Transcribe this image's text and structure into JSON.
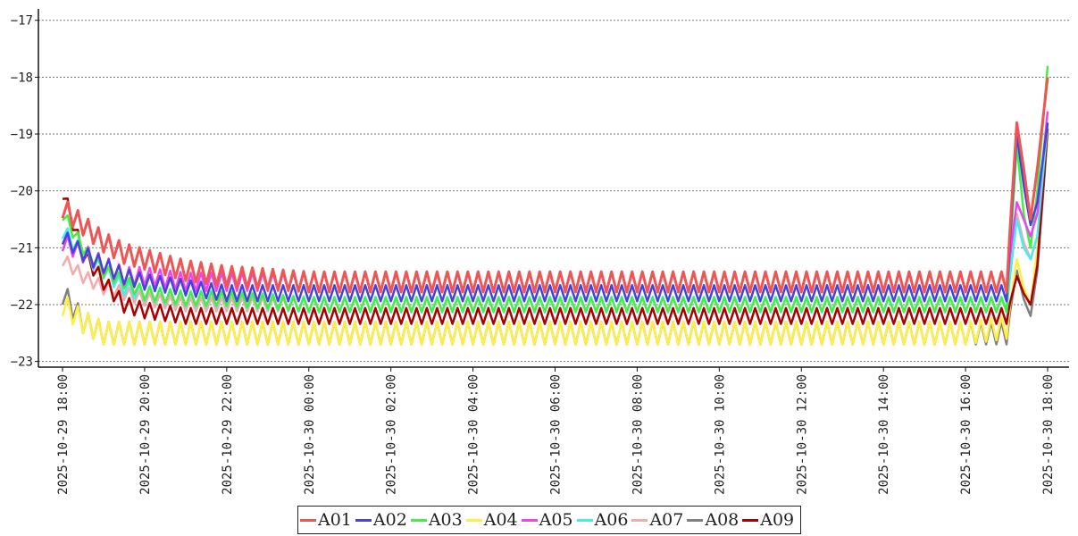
{
  "chart_data": {
    "type": "line",
    "title": "",
    "xlabel": "",
    "ylabel": "",
    "ylim": [
      -23.1,
      -16.8
    ],
    "yticks": [
      -17,
      -18,
      -19,
      -20,
      -21,
      -22,
      -23
    ],
    "x_range": [
      "2025-10-29 17:50",
      "2025-10-30 18:15"
    ],
    "xtick_labels": [
      "2025-10-29 18:00",
      "2025-10-29 20:00",
      "2025-10-29 22:00",
      "2025-10-30 00:00",
      "2025-10-30 02:00",
      "2025-10-30 04:00",
      "2025-10-30 06:00",
      "2025-10-30 08:00",
      "2025-10-30 10:00",
      "2025-10-30 12:00",
      "2025-10-30 14:00",
      "2025-10-30 16:00",
      "2025-10-30 18:00"
    ],
    "grid": "horizontal dotted",
    "legend_position": "bottom-center",
    "x": [
      "2025-10-29 18:00",
      "2025-10-29 18:30",
      "2025-10-29 19:00",
      "2025-10-29 19:30",
      "2025-10-29 20:00",
      "2025-10-29 21:00",
      "2025-10-29 22:00",
      "2025-10-30 00:00",
      "2025-10-30 02:00",
      "2025-10-30 04:00",
      "2025-10-30 06:00",
      "2025-10-30 08:00",
      "2025-10-30 10:00",
      "2025-10-30 12:00",
      "2025-10-30 14:00",
      "2025-10-30 16:00",
      "2025-10-30 17:00",
      "2025-10-30 17:15",
      "2025-10-30 17:25",
      "2025-10-30 17:35",
      "2025-10-30 17:45",
      "2025-10-30 18:00"
    ],
    "series": [
      {
        "name": "A01",
        "color": "#ee5555",
        "values": [
          -20.3,
          -20.6,
          -20.9,
          -21.1,
          -21.2,
          -21.4,
          -21.5,
          -21.6,
          -21.6,
          -21.6,
          -21.6,
          -21.6,
          -21.6,
          -21.6,
          -21.6,
          -21.6,
          -21.6,
          -18.8,
          -19.6,
          -20.5,
          -19.6,
          -18.0
        ]
      },
      {
        "name": "A02",
        "color": "#4444dd",
        "values": [
          -20.8,
          -21.1,
          -21.3,
          -21.5,
          -21.6,
          -21.7,
          -21.8,
          -21.8,
          -21.8,
          -21.8,
          -21.8,
          -21.8,
          -21.8,
          -21.8,
          -21.8,
          -21.8,
          -21.8,
          -19.0,
          -19.9,
          -20.6,
          -20.2,
          -18.8
        ]
      },
      {
        "name": "A03",
        "color": "#44ee44",
        "values": [
          -20.4,
          -21.0,
          -21.4,
          -21.6,
          -21.8,
          -21.9,
          -21.9,
          -22.0,
          -22.0,
          -22.0,
          -22.0,
          -22.0,
          -22.0,
          -22.0,
          -22.0,
          -22.0,
          -22.0,
          -19.2,
          -20.4,
          -21.0,
          -20.0,
          -17.8
        ]
      },
      {
        "name": "A04",
        "color": "#ffee44",
        "values": [
          -22.0,
          -22.3,
          -22.5,
          -22.5,
          -22.5,
          -22.5,
          -22.5,
          -22.5,
          -22.5,
          -22.5,
          -22.5,
          -22.5,
          -22.5,
          -22.5,
          -22.5,
          -22.5,
          -22.4,
          -21.2,
          -21.7,
          -22.0,
          -21.0,
          -19.0
        ]
      },
      {
        "name": "A05",
        "color": "#ee44ee",
        "values": [
          -20.9,
          -21.1,
          -21.3,
          -21.5,
          -21.5,
          -21.6,
          -21.6,
          -21.6,
          -21.6,
          -21.6,
          -21.6,
          -21.6,
          -21.6,
          -21.6,
          -21.6,
          -21.6,
          -21.6,
          -20.2,
          -20.5,
          -20.8,
          -20.4,
          -18.6
        ]
      },
      {
        "name": "A06",
        "color": "#44eeee",
        "values": [
          -20.7,
          -21.1,
          -21.4,
          -21.7,
          -21.8,
          -21.9,
          -21.9,
          -22.0,
          -22.0,
          -22.0,
          -22.0,
          -22.0,
          -22.0,
          -22.0,
          -22.0,
          -22.0,
          -22.0,
          -20.5,
          -21.0,
          -21.2,
          -20.8,
          -18.8
        ]
      },
      {
        "name": "A07",
        "color": "#f4aaaa",
        "values": [
          -21.2,
          -21.5,
          -21.7,
          -21.8,
          -21.9,
          -22.0,
          -22.0,
          -22.0,
          -22.0,
          -22.0,
          -22.0,
          -22.0,
          -22.0,
          -22.0,
          -22.0,
          -22.0,
          -22.0,
          -20.4,
          -20.9,
          -21.2,
          -20.8,
          -18.9
        ]
      },
      {
        "name": "A08",
        "color": "#808080",
        "values": [
          -21.8,
          -22.3,
          -22.5,
          -22.5,
          -22.5,
          -22.5,
          -22.5,
          -22.5,
          -22.5,
          -22.5,
          -22.5,
          -22.5,
          -22.5,
          -22.5,
          -22.5,
          -22.5,
          -22.5,
          -21.4,
          -21.9,
          -22.2,
          -21.4,
          -19.0
        ]
      },
      {
        "name": "A09",
        "color": "#aa0000",
        "values": [
          -20.0,
          -21.1,
          -21.6,
          -22.0,
          -22.1,
          -22.2,
          -22.2,
          -22.2,
          -22.2,
          -22.2,
          -22.2,
          -22.2,
          -22.2,
          -22.2,
          -22.2,
          -22.2,
          -22.2,
          -21.5,
          -21.8,
          -22.0,
          -21.3,
          -18.9
        ]
      }
    ]
  }
}
